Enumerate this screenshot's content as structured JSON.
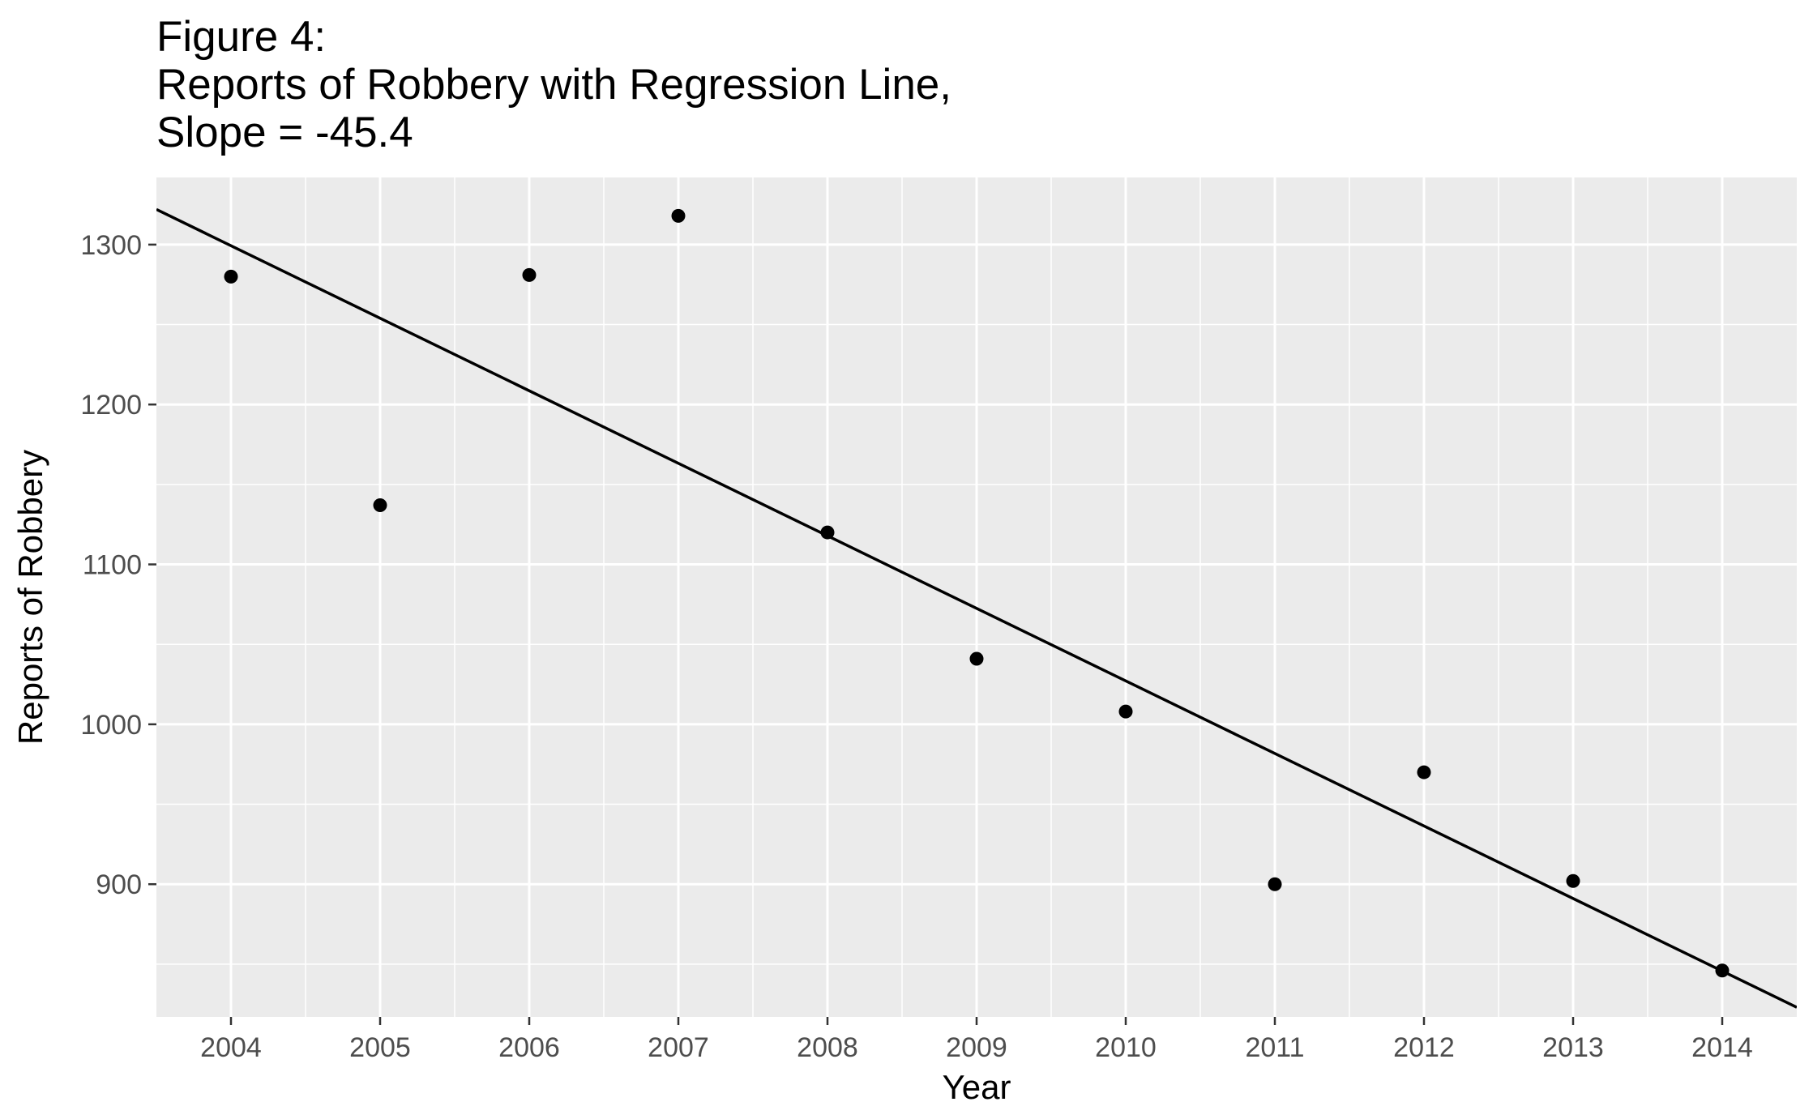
{
  "chart_data": {
    "type": "scatter",
    "title": [
      "Figure 4:",
      "Reports of Robbery with Regression Line,",
      "Slope = -45.4"
    ],
    "xlabel": "Year",
    "ylabel": "Reports of Robbery",
    "categories": [
      "2004",
      "2005",
      "2006",
      "2007",
      "2008",
      "2009",
      "2010",
      "2011",
      "2012",
      "2013",
      "2014"
    ],
    "yticks": [
      900,
      1000,
      1100,
      1200,
      1300
    ],
    "ylim": [
      817,
      1342
    ],
    "xlim": [
      2003.5,
      2014.5
    ],
    "grid": true,
    "legend": "none",
    "series": [
      {
        "x": [
          2004,
          2005,
          2006,
          2007,
          2008,
          2009,
          2010,
          2011,
          2012,
          2013,
          2014
        ],
        "values": [
          1280,
          1137,
          1281,
          1318,
          1120,
          1041,
          1008,
          900,
          970,
          902,
          846
        ]
      }
    ],
    "regression": {
      "slope": -45.4,
      "start": [
        2003.5,
        1322
      ],
      "end": [
        2014.5,
        823
      ]
    },
    "colors": {
      "panel": "#EBEBEB",
      "grid": "#FFFFFF",
      "points": "#000000",
      "line": "#000000",
      "tick_text": "#4D4D4D",
      "tick_mark": "#333333"
    }
  }
}
